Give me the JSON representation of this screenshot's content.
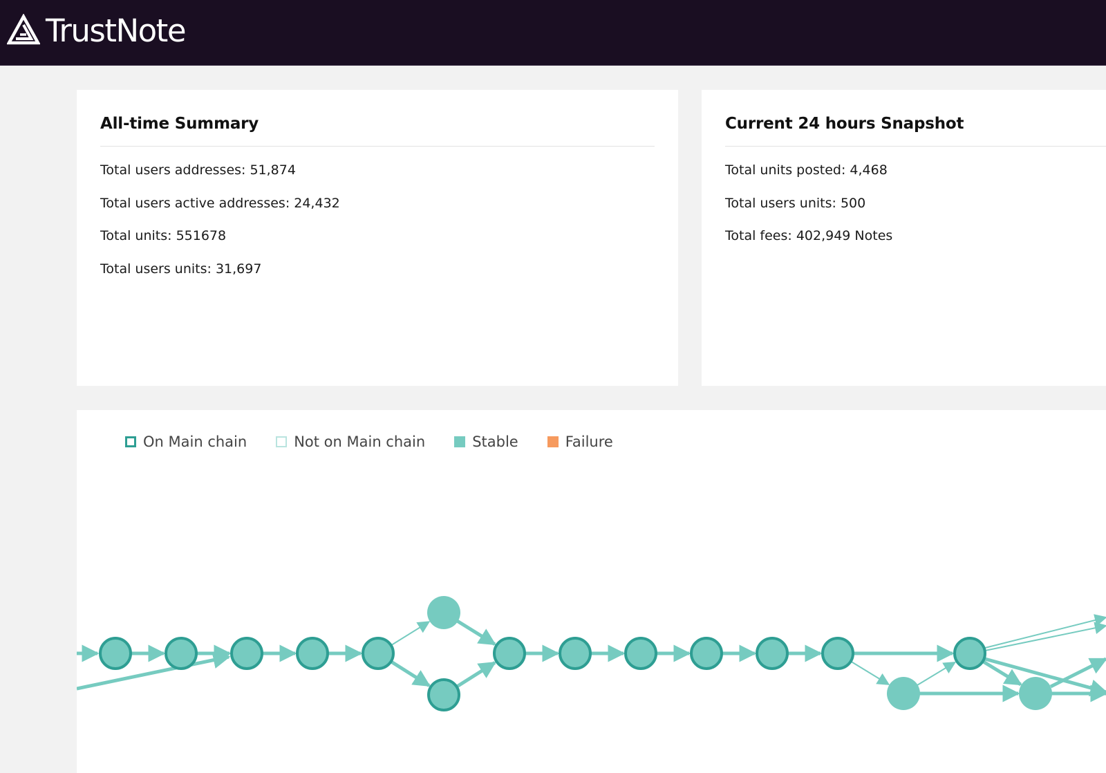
{
  "header": {
    "brand": "TrustNote",
    "logo_icon": "trustnote-triangle-logo-icon"
  },
  "summary": {
    "title": "All-time Summary",
    "stats": [
      "Total users addresses: 51,874",
      "Total users active addresses: 24,432",
      "Total units: 551678",
      "Total users units: 31,697"
    ]
  },
  "snapshot": {
    "title": "Current 24 hours Snapshot",
    "stats": [
      "Total units posted: 4,468",
      "Total users units: 500",
      "Total fees: 402,949 Notes"
    ]
  },
  "graph": {
    "legend": [
      {
        "label": "On Main chain",
        "swatch": "outline-dark"
      },
      {
        "label": "Not on Main chain",
        "swatch": "outline-light"
      },
      {
        "label": "Stable",
        "swatch": "filled-teal"
      },
      {
        "label": "Failure",
        "swatch": "filled-orange"
      }
    ],
    "colors": {
      "node_fill": "#76cbc0",
      "main_chain_stroke": "#2e9e93",
      "edge": "#76cbc0",
      "failure": "#f69a5e"
    },
    "nodes": [
      {
        "id": "u1",
        "main_chain": true,
        "stable": true
      },
      {
        "id": "u2",
        "main_chain": true,
        "stable": true
      },
      {
        "id": "u3",
        "main_chain": true,
        "stable": true
      },
      {
        "id": "u4",
        "main_chain": true,
        "stable": true
      },
      {
        "id": "u5",
        "main_chain": true,
        "stable": true
      },
      {
        "id": "u6a",
        "main_chain": false,
        "stable": true
      },
      {
        "id": "u6b",
        "main_chain": true,
        "stable": true
      },
      {
        "id": "u7",
        "main_chain": true,
        "stable": true
      },
      {
        "id": "u8",
        "main_chain": true,
        "stable": true
      },
      {
        "id": "u9",
        "main_chain": true,
        "stable": true
      },
      {
        "id": "u10",
        "main_chain": true,
        "stable": true
      },
      {
        "id": "u11",
        "main_chain": true,
        "stable": true
      },
      {
        "id": "u12",
        "main_chain": true,
        "stable": true
      },
      {
        "id": "u13",
        "main_chain": true,
        "stable": true
      },
      {
        "id": "u14a",
        "main_chain": false,
        "stable": true
      },
      {
        "id": "u14b",
        "main_chain": false,
        "stable": true
      }
    ],
    "edges": [
      [
        "u1",
        "u2"
      ],
      [
        "u2",
        "u3"
      ],
      [
        "u3",
        "u4"
      ],
      [
        "u4",
        "u5"
      ],
      [
        "u5",
        "u6a"
      ],
      [
        "u5",
        "u6b"
      ],
      [
        "u6a",
        "u7"
      ],
      [
        "u6b",
        "u7"
      ],
      [
        "u7",
        "u8"
      ],
      [
        "u8",
        "u9"
      ],
      [
        "u9",
        "u10"
      ],
      [
        "u10",
        "u11"
      ],
      [
        "u11",
        "u12"
      ],
      [
        "u12",
        "u13"
      ],
      [
        "u12",
        "u14a"
      ],
      [
        "u13",
        "u14b"
      ],
      [
        "u14a",
        "u13"
      ],
      [
        "u14a",
        "u14b"
      ]
    ]
  }
}
